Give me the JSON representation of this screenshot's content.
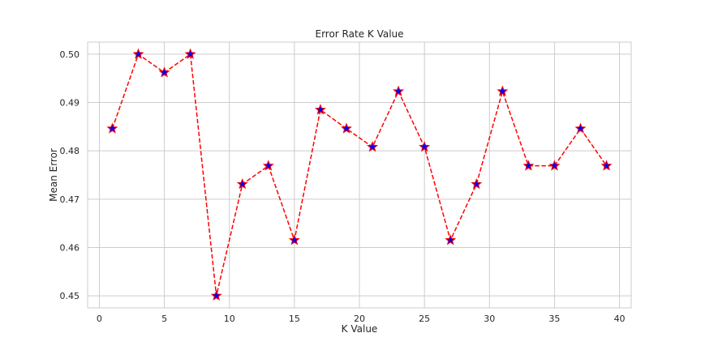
{
  "chart_data": {
    "type": "line",
    "title": "Error Rate K Value",
    "xlabel": "K Value",
    "ylabel": "Mean Error",
    "xlim": [
      -0.9,
      40.9
    ],
    "ylim": [
      0.4475,
      0.5025
    ],
    "x_ticks": [
      0,
      5,
      10,
      15,
      20,
      25,
      30,
      35,
      40
    ],
    "y_ticks": [
      0.45,
      0.46,
      0.47,
      0.48,
      0.49,
      0.5
    ],
    "y_tick_labels": [
      "0.45",
      "0.46",
      "0.47",
      "0.48",
      "0.49",
      "0.50"
    ],
    "grid": true,
    "series": [
      {
        "line_color": "#ff0000",
        "line_style": "dashed",
        "marker": "star",
        "marker_face_color": "#0000ff",
        "marker_edge_color": "#ff0000",
        "x": [
          1,
          3,
          5,
          7,
          9,
          11,
          13,
          15,
          17,
          19,
          21,
          23,
          25,
          27,
          29,
          31,
          33,
          35,
          37,
          39
        ],
        "values": [
          0.4846,
          0.5,
          0.4962,
          0.5,
          0.45,
          0.4731,
          0.4769,
          0.4615,
          0.4885,
          0.4846,
          0.4808,
          0.4923,
          0.4808,
          0.4615,
          0.4731,
          0.4923,
          0.4769,
          0.4769,
          0.4846,
          0.4769
        ]
      }
    ]
  }
}
